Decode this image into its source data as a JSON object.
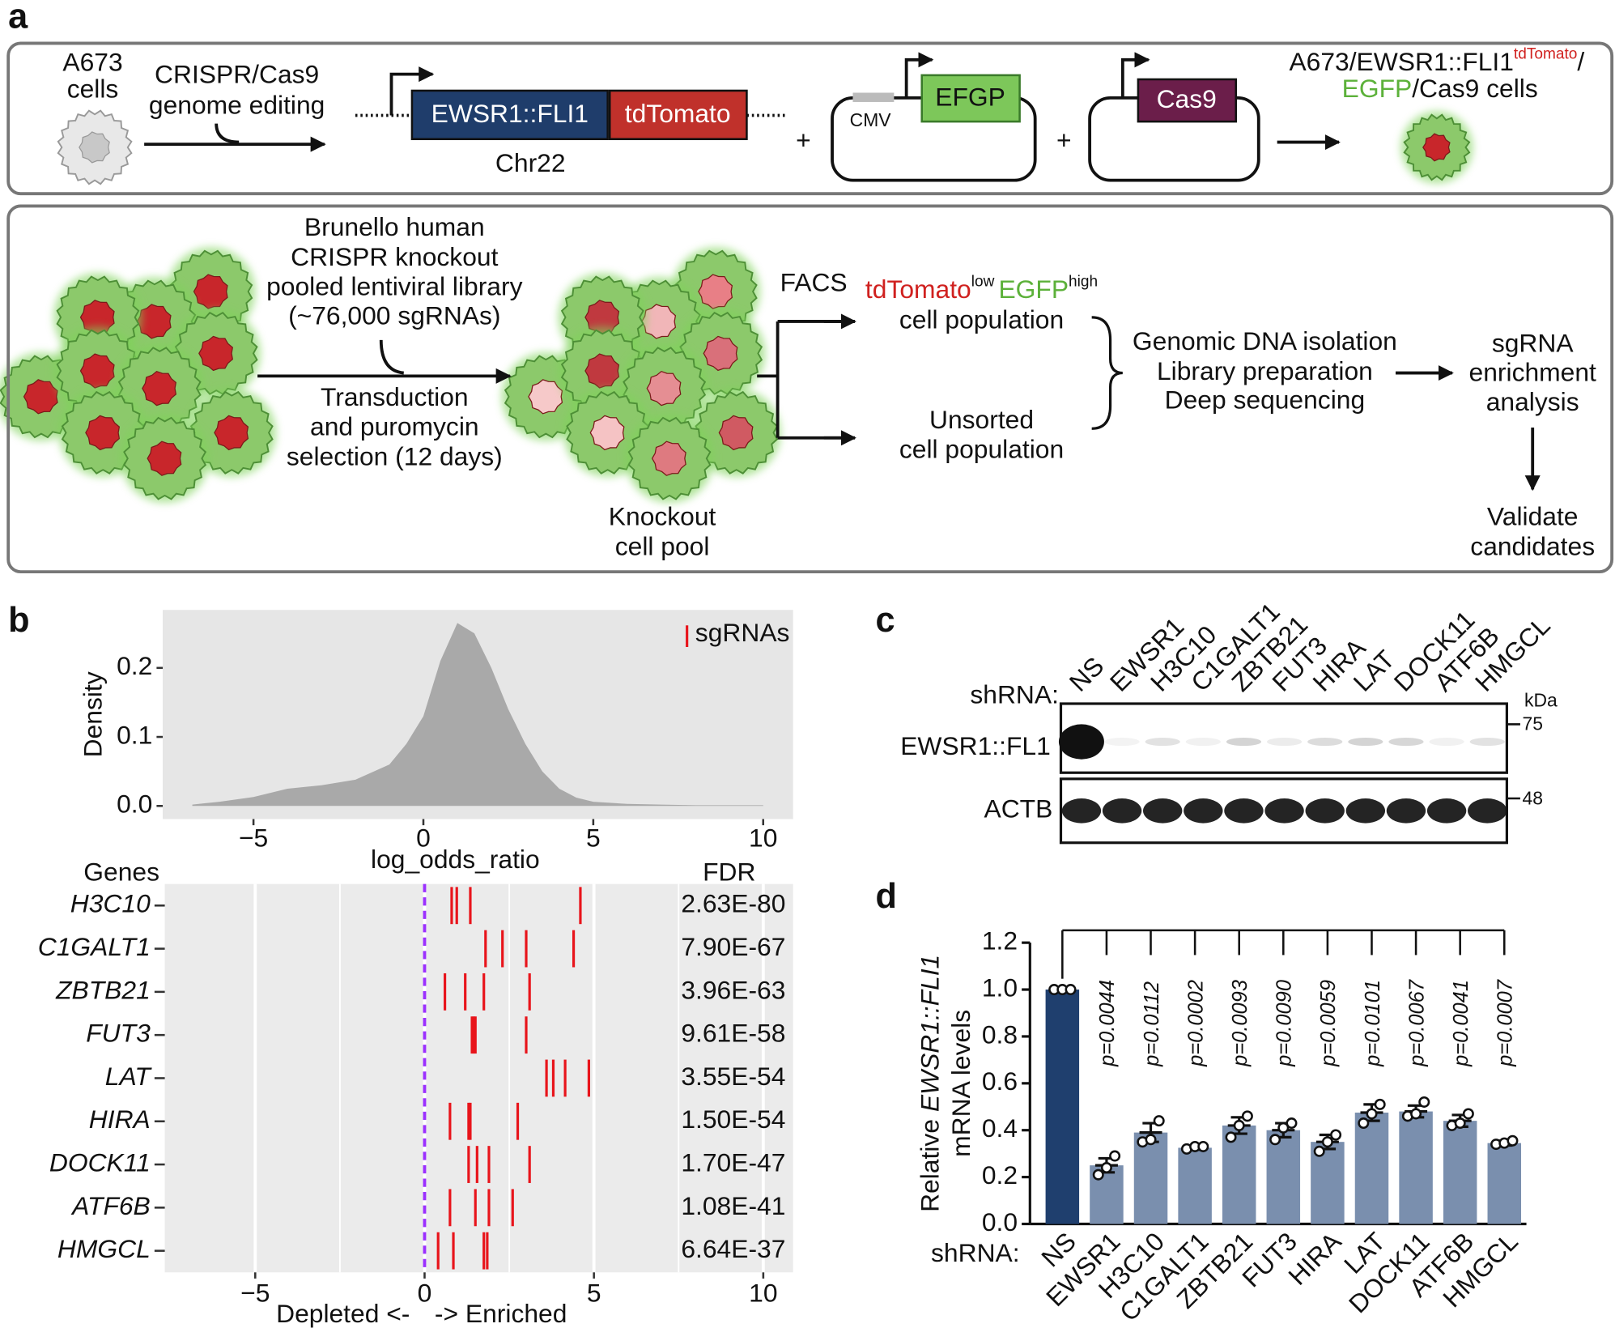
{
  "panel_a": {
    "label": "a",
    "cells_label": [
      "A673",
      "cells"
    ],
    "editing": [
      "CRISPR/Cas9",
      "genome editing"
    ],
    "construct": {
      "gene": "EWSR1::FLI1",
      "tag": "tdTomato",
      "locus": "Chr22"
    },
    "plasmid_1": {
      "promoter": "CMV",
      "gene": "EFGP"
    },
    "plasmid_2": {
      "gene": "Cas9"
    },
    "plus": "+",
    "result": {
      "line1": "A673/EWSR1::FLI1",
      "sup": "tdTomato",
      "slash": "/",
      "egfp": "EGFP",
      "rest": "/Cas9 cells"
    },
    "library": [
      "Brunello human",
      "CRISPR knockout",
      "pooled lentiviral library",
      "(~76,000 sgRNAs)"
    ],
    "transduction": [
      "Transduction",
      "and puromycin",
      "selection (12 days)"
    ],
    "pool": [
      "Knockout",
      "cell pool"
    ],
    "facs": "FACS",
    "sorted": {
      "tdtomato": "tdTomato",
      "low": "low",
      "egfp": "EGFP",
      "high": "high",
      "line2": "cell population"
    },
    "unsorted": [
      "Unsorted",
      "cell population"
    ],
    "processing": [
      "Genomic DNA isolation",
      "Library preparation",
      "Deep sequencing"
    ],
    "analysis": [
      "sgRNA",
      "enrichment",
      "analysis"
    ],
    "validate": [
      "Validate",
      "candidates"
    ]
  },
  "panel_b": {
    "label": "b"
  },
  "panel_c": {
    "label": "c",
    "row_label": "shRNA:",
    "lanes": [
      "NS",
      "EWSR1",
      "H3C10",
      "C1GALT1",
      "ZBTB21",
      "FUT3",
      "HIRA",
      "LAT",
      "DOCK11",
      "ATF6B",
      "HMGCL"
    ],
    "unit": "kDa",
    "markers": [
      "75",
      "48"
    ],
    "blots": [
      "EWSR1::FL1",
      "ACTB"
    ]
  },
  "panel_d": {
    "label": "d"
  },
  "chart_data": [
    {
      "type": "area",
      "y_label": "Density",
      "x_label": "log_odds_ratio",
      "legend": "sgRNAs",
      "legend_color": "#e8141b",
      "color": "#a9a9a9",
      "background": "#e6e6e6",
      "x": [
        -6.8,
        -6,
        -5,
        -4,
        -3,
        -2,
        -1,
        -0.5,
        0,
        0.5,
        1,
        1.5,
        2,
        2.5,
        3,
        3.5,
        4,
        4.5,
        5,
        6,
        7,
        8,
        10
      ],
      "values": [
        0.002,
        0.006,
        0.013,
        0.025,
        0.03,
        0.038,
        0.06,
        0.09,
        0.13,
        0.21,
        0.265,
        0.25,
        0.2,
        0.14,
        0.09,
        0.05,
        0.025,
        0.012,
        0.006,
        0.003,
        0.002,
        0.001,
        0.001
      ],
      "xlim": [
        -7.67,
        10.88
      ],
      "ylim": [
        -0.019,
        0.284
      ],
      "xticks": [
        {
          "value": -5,
          "label": "−5"
        },
        0,
        5,
        10
      ],
      "yticks": [
        {
          "value": 0,
          "label": "0.0"
        },
        0.1,
        0.2
      ]
    },
    {
      "type": "strip",
      "y_label": "Genes",
      "fdr_label": "FDR",
      "x_label_left": "Depleted <-",
      "x_label_right": "-> Enriched",
      "color": "#e8141b",
      "background": "#ebebeb",
      "grid": true,
      "categories": [
        "H3C10",
        "C1GALT1",
        "ZBTB21",
        "FUT3",
        "LAT",
        "HIRA",
        "DOCK11",
        "ATF6B",
        "HMGCL"
      ],
      "values": [
        [
          0.8,
          0.95,
          1.35,
          4.6
        ],
        [
          1.8,
          2.3,
          3.0,
          4.4
        ],
        [
          0.6,
          1.2,
          1.75,
          3.1
        ],
        [
          1.4,
          1.45,
          1.5,
          3.0
        ],
        [
          3.6,
          3.8,
          4.15,
          4.85
        ],
        [
          0.75,
          1.3,
          1.35,
          2.75
        ],
        [
          1.3,
          1.55,
          1.9,
          3.1
        ],
        [
          0.75,
          1.5,
          1.9,
          2.6
        ],
        [
          0.4,
          0.85,
          1.75,
          1.85
        ]
      ],
      "fdr": [
        "2.63E-80",
        "7.90E-67",
        "3.96E-63",
        "9.61E-58",
        "3.55E-54",
        "1.50E-54",
        "1.70E-47",
        "1.08E-41",
        "6.64E-37"
      ],
      "threshold": 0,
      "threshold_color": "#9b30ff",
      "xlim": [
        -7.67,
        10.88
      ],
      "xticks": [
        {
          "value": -5,
          "label": "−5"
        },
        0,
        5,
        10
      ],
      "minor_xticks": [
        -2.5,
        2.5,
        7.5
      ]
    },
    {
      "type": "bar",
      "y_label": [
        "Relative ",
        "EWSR1::FLI1",
        "mRNA levels"
      ],
      "x_label": "shRNA:",
      "categories": [
        "NS",
        "EWSR1",
        "H3C10",
        "C1GALT1",
        "ZBTB21",
        "FUT3",
        "HIRA",
        "LAT",
        "DOCK11",
        "ATF6B",
        "HMGCL"
      ],
      "values": [
        1.0,
        0.25,
        0.39,
        0.325,
        0.42,
        0.4,
        0.35,
        0.475,
        0.48,
        0.44,
        0.345
      ],
      "errors": [
        0,
        0.03,
        0.04,
        0.008,
        0.035,
        0.03,
        0.03,
        0.035,
        0.025,
        0.025,
        0.01
      ],
      "points": [
        [
          1,
          1,
          1
        ],
        [
          0.21,
          0.24,
          0.29
        ],
        [
          0.35,
          0.36,
          0.44
        ],
        [
          0.32,
          0.33,
          0.33
        ],
        [
          0.37,
          0.42,
          0.46
        ],
        [
          0.36,
          0.41,
          0.43
        ],
        [
          0.31,
          0.35,
          0.38
        ],
        [
          0.43,
          0.47,
          0.51
        ],
        [
          0.46,
          0.47,
          0.52
        ],
        [
          0.42,
          0.43,
          0.47
        ],
        [
          0.34,
          0.345,
          0.355
        ]
      ],
      "colors": [
        "#1f3f6e",
        "#7a8fae",
        "#7a8fae",
        "#7a8fae",
        "#7a8fae",
        "#7a8fae",
        "#7a8fae",
        "#7a8fae",
        "#7a8fae",
        "#7a8fae",
        "#7a8fae"
      ],
      "annotations": [
        null,
        "p=0.0044",
        "p=0.0112",
        "p=0.0002",
        "p=0.0093",
        "p=0.0090",
        "p=0.0059",
        "p=0.0101",
        "p=0.0067",
        "p=0.0041",
        "p=0.0007"
      ],
      "ylim": [
        0,
        1.2
      ],
      "yticks": [
        {
          "value": 0,
          "label": "0.0"
        },
        0.2,
        0.4,
        0.6,
        0.8,
        {
          "value": 1,
          "label": "1.0"
        },
        1.2
      ]
    }
  ]
}
